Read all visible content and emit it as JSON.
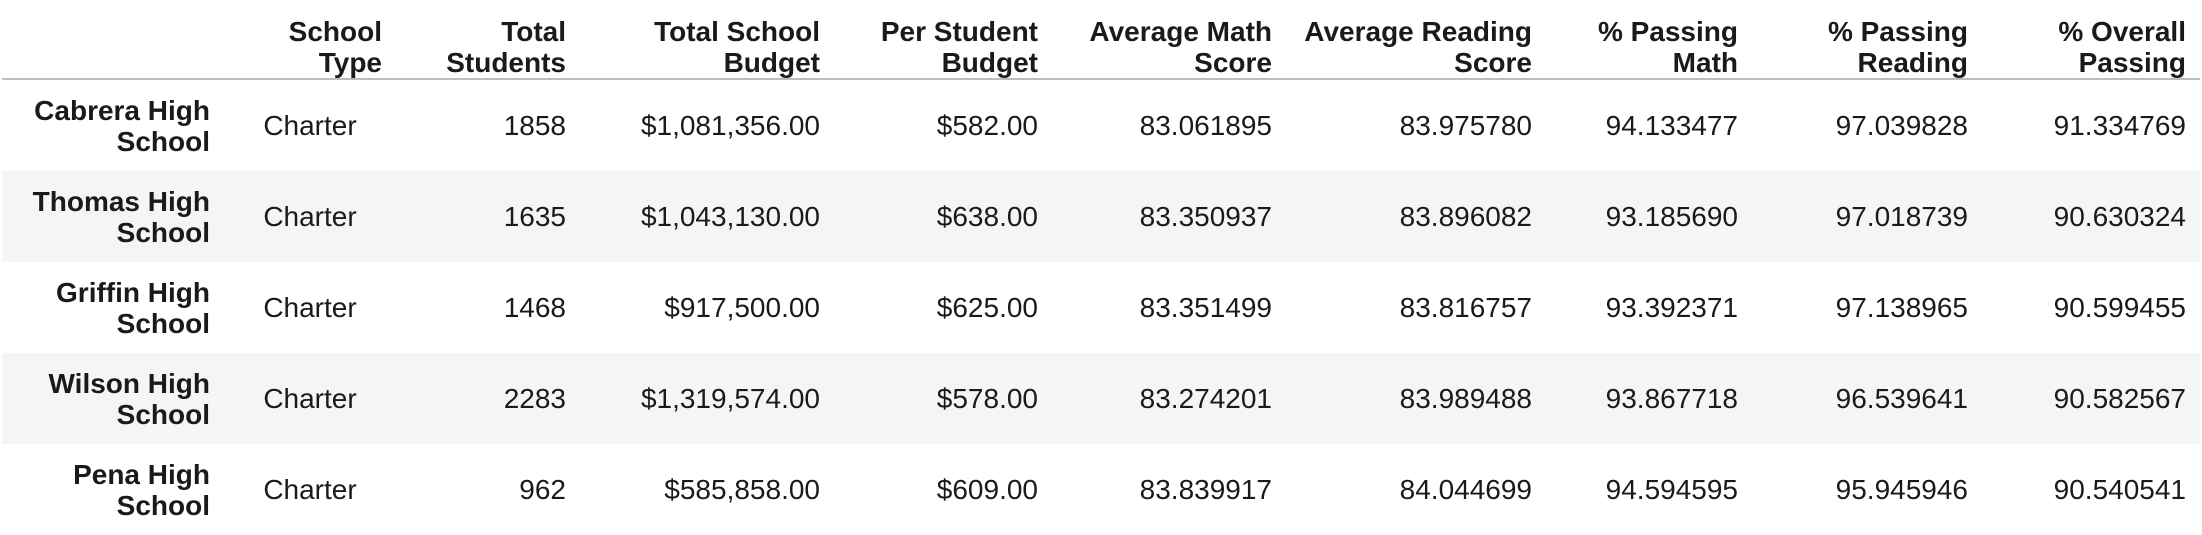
{
  "table": {
    "columns": [
      {
        "key": "index",
        "label": ""
      },
      {
        "key": "school_type",
        "label": "School Type"
      },
      {
        "key": "total_students",
        "label": "Total Students"
      },
      {
        "key": "total_budget",
        "label": "Total School Budget"
      },
      {
        "key": "per_student_budget",
        "label": "Per Student Budget"
      },
      {
        "key": "avg_math",
        "label": "Average Math Score"
      },
      {
        "key": "avg_reading",
        "label": "Average Reading Score"
      },
      {
        "key": "pct_math",
        "label": "% Passing Math"
      },
      {
        "key": "pct_reading",
        "label": "% Passing Reading"
      },
      {
        "key": "pct_overall",
        "label": "% Overall Passing"
      }
    ],
    "rows": [
      {
        "name": "Cabrera High School",
        "school_type": "Charter",
        "total_students": "1858",
        "total_budget": "$1,081,356.00",
        "per_student_budget": "$582.00",
        "avg_math": "83.061895",
        "avg_reading": "83.975780",
        "pct_math": "94.133477",
        "pct_reading": "97.039828",
        "pct_overall": "91.334769"
      },
      {
        "name": "Thomas High School",
        "school_type": "Charter",
        "total_students": "1635",
        "total_budget": "$1,043,130.00",
        "per_student_budget": "$638.00",
        "avg_math": "83.350937",
        "avg_reading": "83.896082",
        "pct_math": "93.185690",
        "pct_reading": "97.018739",
        "pct_overall": "90.630324"
      },
      {
        "name": "Griffin High School",
        "school_type": "Charter",
        "total_students": "1468",
        "total_budget": "$917,500.00",
        "per_student_budget": "$625.00",
        "avg_math": "83.351499",
        "avg_reading": "83.816757",
        "pct_math": "93.392371",
        "pct_reading": "97.138965",
        "pct_overall": "90.599455"
      },
      {
        "name": "Wilson High School",
        "school_type": "Charter",
        "total_students": "2283",
        "total_budget": "$1,319,574.00",
        "per_student_budget": "$578.00",
        "avg_math": "83.274201",
        "avg_reading": "83.989488",
        "pct_math": "93.867718",
        "pct_reading": "96.539641",
        "pct_overall": "90.582567"
      },
      {
        "name": "Pena High School",
        "school_type": "Charter",
        "total_students": "962",
        "total_budget": "$585,858.00",
        "per_student_budget": "$609.00",
        "avg_math": "83.839917",
        "avg_reading": "84.044699",
        "pct_math": "94.594595",
        "pct_reading": "95.945946",
        "pct_overall": "90.540541"
      }
    ]
  }
}
